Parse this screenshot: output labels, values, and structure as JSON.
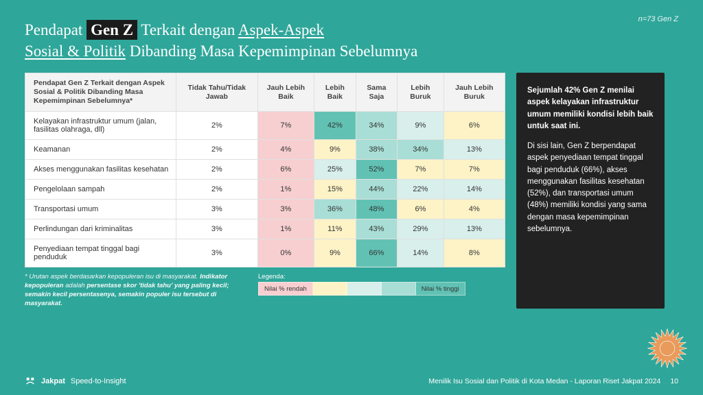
{
  "meta": {
    "sample_size": "n=73 Gen Z"
  },
  "title": {
    "p1": "Pendapat ",
    "highlight": "Gen Z",
    "p2": " Terkait dengan ",
    "underline1": "Aspek-Aspek",
    "underline2": "Sosial & Politik",
    "p3": " Dibanding Masa Kepemimpinan Sebelumnya"
  },
  "table": {
    "headers": [
      "Pendapat Gen Z Terkait dengan Aspek Sosial & Politik Dibanding Masa Kepemimpinan Sebelumnya*",
      "Tidak Tahu/Tidak Jawab",
      "Jauh Lebih Baik",
      "Lebih Baik",
      "Sama Saja",
      "Lebih Buruk",
      "Jauh Lebih Buruk"
    ],
    "rows": [
      {
        "label": "Kelayakan infrastruktur umum (jalan, fasilitas olahraga, dll)",
        "cells": [
          "2%",
          "7%",
          "42%",
          "34%",
          "9%",
          "6%"
        ],
        "colors": [
          "#ffffff",
          "#f7cfd0",
          "#61c2b4",
          "#a8ded5",
          "#d8efeb",
          "#fdf3c6"
        ]
      },
      {
        "label": "Keamanan",
        "cells": [
          "2%",
          "4%",
          "9%",
          "38%",
          "34%",
          "13%"
        ],
        "colors": [
          "#ffffff",
          "#f7cfd0",
          "#fdf3c6",
          "#a8ded5",
          "#a8ded5",
          "#d8efeb"
        ]
      },
      {
        "label": "Akses menggunakan fasilitas kesehatan",
        "cells": [
          "2%",
          "6%",
          "25%",
          "52%",
          "7%",
          "7%"
        ],
        "colors": [
          "#ffffff",
          "#f7cfd0",
          "#d8efeb",
          "#61c2b4",
          "#fdf3c6",
          "#fdf3c6"
        ]
      },
      {
        "label": "Pengelolaan sampah",
        "cells": [
          "2%",
          "1%",
          "15%",
          "44%",
          "22%",
          "14%"
        ],
        "colors": [
          "#ffffff",
          "#f7cfd0",
          "#fdf3c6",
          "#a8ded5",
          "#d8efeb",
          "#d8efeb"
        ]
      },
      {
        "label": "Transportasi umum",
        "cells": [
          "3%",
          "3%",
          "36%",
          "48%",
          "6%",
          "4%"
        ],
        "colors": [
          "#ffffff",
          "#f7cfd0",
          "#a8ded5",
          "#61c2b4",
          "#fdf3c6",
          "#fdf3c6"
        ]
      },
      {
        "label": "Perlindungan dari kriminalitas",
        "cells": [
          "3%",
          "1%",
          "11%",
          "43%",
          "29%",
          "13%"
        ],
        "colors": [
          "#ffffff",
          "#f7cfd0",
          "#fdf3c6",
          "#a8ded5",
          "#d8efeb",
          "#d8efeb"
        ]
      },
      {
        "label": "Penyediaan tempat tinggal bagi penduduk",
        "cells": [
          "3%",
          "0%",
          "9%",
          "66%",
          "14%",
          "8%"
        ],
        "colors": [
          "#ffffff",
          "#f7cfd0",
          "#fdf3c6",
          "#61c2b4",
          "#d8efeb",
          "#fdf3c6"
        ]
      }
    ]
  },
  "footnote": {
    "line1": "* Urutan aspek berdasarkan kepopuleran isu di masyarakat.",
    "bold": "Indikator kepopuleran",
    "line2": " adalah ",
    "bold2": "persentase skor 'tidak tahu' yang paling kecil; semakin kecil persentasenya, semakin populer isu tersebut di masyarakat."
  },
  "legend": {
    "label": "Legenda:",
    "low": "Nilai % rendah",
    "high": "Nilai % tinggi",
    "colors": [
      "#f7cfd0",
      "#fdf3c6",
      "#d8efeb",
      "#a8ded5",
      "#61c2b4"
    ]
  },
  "sidebar": {
    "p1a": "Sejumlah 42% Gen Z menilai aspek kelayakan infrastruktur umum memiliki kondisi lebih baik untuk saat ini.",
    "p2": "Di sisi lain, Gen Z berpendapat aspek penyediaan tempat tinggal bagi penduduk (66%), akses menggunakan fasilitas kesehatan (52%), dan transportasi umum (48%) memiliki kondisi yang sama dengan masa kepemimpinan sebelumnya."
  },
  "footer": {
    "brand": "Jakpat",
    "tagline": "Speed-to-Insight",
    "report": "Menilik Isu Sosial dan Politik di Kota Medan - Laporan Riset Jakpat 2024",
    "page": "10"
  },
  "style": {
    "starburst_fill": "#e89b5a",
    "starburst_stroke": "#ffffff"
  }
}
